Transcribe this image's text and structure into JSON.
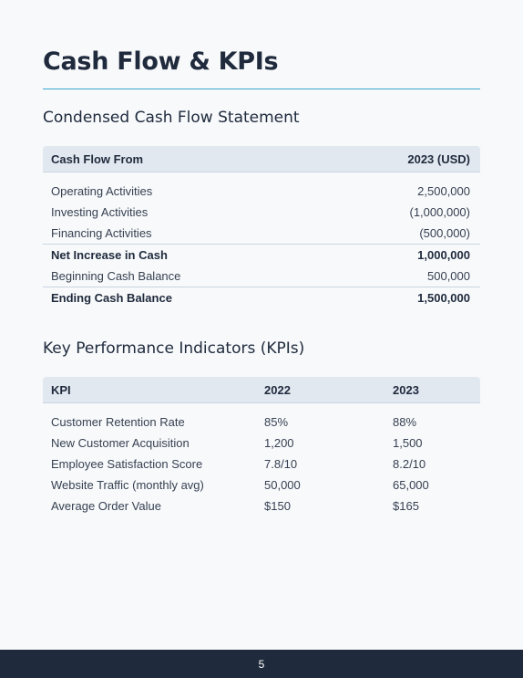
{
  "page": {
    "title": "Cash Flow & KPIs",
    "page_number": "5"
  },
  "cash_flow": {
    "heading": "Condensed Cash Flow Statement",
    "header": {
      "label": "Cash Flow From",
      "value": "2023 (USD)"
    },
    "rows": [
      {
        "label": "Operating Activities",
        "value": "2,500,000"
      },
      {
        "label": "Investing Activities",
        "value": "(1,000,000)"
      },
      {
        "label": "Financing Activities",
        "value": "(500,000)"
      },
      {
        "label": "Net Increase in Cash",
        "value": "1,000,000"
      },
      {
        "label": "Beginning Cash Balance",
        "value": "500,000"
      },
      {
        "label": "Ending Cash Balance",
        "value": "1,500,000"
      }
    ]
  },
  "kpis": {
    "heading": "Key Performance Indicators (KPIs)",
    "header": {
      "kpi": "KPI",
      "y2022": "2022",
      "y2023": "2023"
    },
    "rows": [
      {
        "kpi": "Customer Retention Rate",
        "y2022": "85%",
        "y2023": "88%"
      },
      {
        "kpi": "New Customer Acquisition",
        "y2022": "1,200",
        "y2023": "1,500"
      },
      {
        "kpi": "Employee Satisfaction Score",
        "y2022": "7.8/10",
        "y2023": "8.2/10"
      },
      {
        "kpi": "Website Traffic (monthly avg)",
        "y2022": "50,000",
        "y2023": "65,000"
      },
      {
        "kpi": "Average Order Value",
        "y2022": "$150",
        "y2023": "$165"
      }
    ]
  },
  "colors": {
    "heading": "#1f2a3c",
    "accent_rule": "#38a9cf",
    "table_header_bg": "#e2e8f0",
    "footer_bg": "#1f2a3c"
  }
}
